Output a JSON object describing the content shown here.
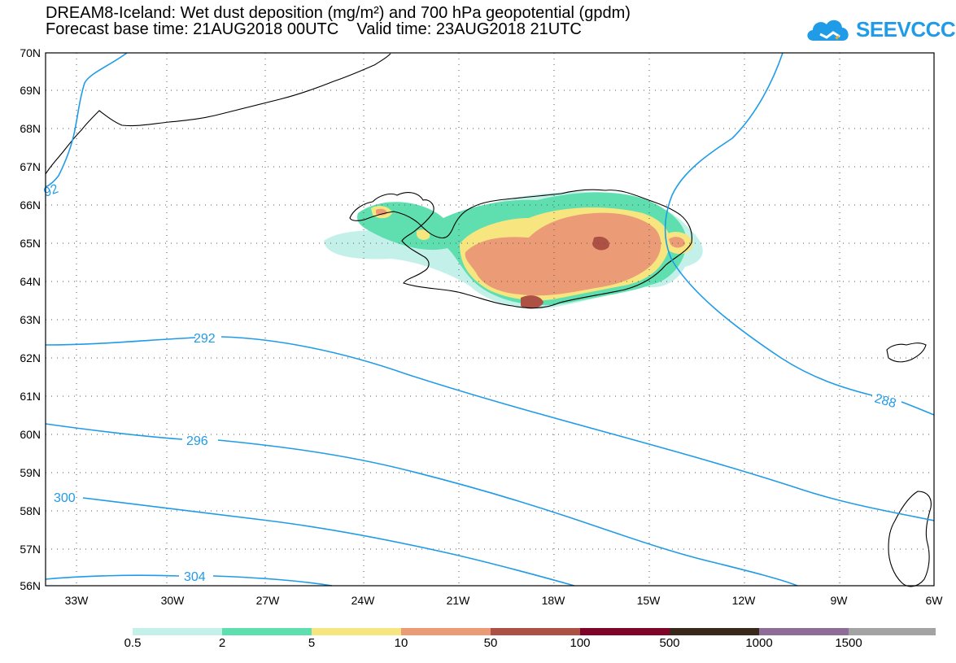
{
  "title": {
    "line1": "DREAM8-Iceland: Wet dust deposition (mg/m²) and 700 hPa geopotential (gpdm)",
    "line2": "Forecast base time: 21AUG2018 00UTC    Valid time: 23AUG2018 21UTC"
  },
  "logo": {
    "text": "SEEVCCC",
    "icon": "cloud-icon"
  },
  "map": {
    "lat_labels": [
      "70N",
      "69N",
      "68N",
      "67N",
      "66N",
      "65N",
      "64N",
      "63N",
      "62N",
      "61N",
      "60N",
      "59N",
      "58N",
      "57N",
      "56N"
    ],
    "lon_labels": [
      "33W",
      "30W",
      "27W",
      "24W",
      "21W",
      "18W",
      "15W",
      "12W",
      "9W",
      "6W"
    ],
    "contours": [
      {
        "value": "292",
        "label": "292"
      },
      {
        "value": "296",
        "label": "296"
      },
      {
        "value": "300",
        "label": "300"
      },
      {
        "value": "304",
        "label": "304"
      },
      {
        "value": "288",
        "label": "288"
      },
      {
        "value": "292b",
        "label": "92"
      }
    ],
    "contour_color": "#1f9be8"
  },
  "legend": {
    "colors": [
      "#c3f1e9",
      "#5fdfb0",
      "#f7e680",
      "#eb9c76",
      "#ad5144",
      "#7e0528",
      "#3a281a",
      "#8e6e98",
      "#a3a3a3"
    ],
    "labels": [
      "0.5",
      "2",
      "5",
      "10",
      "50",
      "100",
      "500",
      "1000",
      "1500"
    ]
  }
}
